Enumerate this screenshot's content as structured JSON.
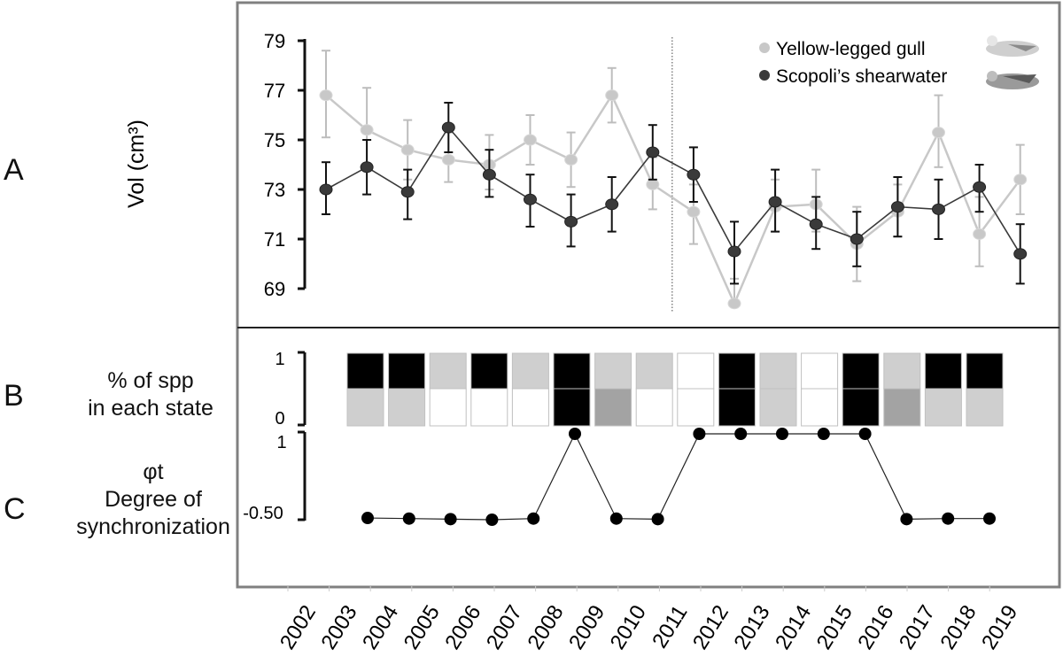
{
  "panels": {
    "a": {
      "letter": "A"
    },
    "b": {
      "letter": "B",
      "label_line1": "% of spp",
      "label_line2": "in each state"
    },
    "c": {
      "letter": "C",
      "label_line1": "φt",
      "label_line2": "Degree of",
      "label_line3": "synchronization"
    }
  },
  "colors": {
    "gull": "#c8c8c8",
    "shearwater": "#3a3a3a",
    "state_black": "#000000",
    "state_light": "#cfcfcf",
    "state_mid": "#a3a3a3",
    "state_white": "#ffffff"
  },
  "legend_icons": [
    "gull-photo-icon",
    "shearwater-photo-icon"
  ],
  "x_labels": [
    "2002",
    "2003",
    "2004",
    "2005",
    "2006",
    "2007",
    "2008",
    "2009",
    "2010",
    "2011",
    "2012",
    "2013",
    "2014",
    "2015",
    "2016",
    "2017",
    "2018",
    "2019"
  ],
  "chart_data": [
    {
      "type": "line",
      "panel": "A",
      "ylabel": "Vol (cm³)",
      "ylim": [
        68,
        80
      ],
      "yticks": [
        69,
        71,
        73,
        75,
        77,
        79
      ],
      "x": [
        "2002",
        "2003",
        "2004",
        "2005",
        "2006",
        "2007",
        "2008",
        "2009",
        "2010",
        "2011",
        "2012",
        "2013",
        "2014",
        "2015",
        "2016",
        "2017",
        "2018",
        "2019"
      ],
      "divider_after": "2010",
      "legend_position": "top-right",
      "series": [
        {
          "name": "Yellow-legged gull",
          "values": [
            76.8,
            75.4,
            74.6,
            74.2,
            74.0,
            75.0,
            74.2,
            76.8,
            73.2,
            72.1,
            68.4,
            72.3,
            72.4,
            70.8,
            72.1,
            75.3,
            71.2,
            73.4
          ],
          "err_hi": [
            78.6,
            77.1,
            75.8,
            75.3,
            75.2,
            76.0,
            75.3,
            77.9,
            74.3,
            73.2,
            69.4,
            73.4,
            73.8,
            72.3,
            73.2,
            76.8,
            72.7,
            74.8
          ],
          "err_lo": [
            75.1,
            73.8,
            73.4,
            73.3,
            73.0,
            74.0,
            73.1,
            75.7,
            72.2,
            70.8,
            68.4,
            71.3,
            71.3,
            69.3,
            71.1,
            73.9,
            69.9,
            72.0
          ]
        },
        {
          "name": "Scopoli’s shearwater",
          "values": [
            73.0,
            73.9,
            72.9,
            75.5,
            73.6,
            72.6,
            71.7,
            72.4,
            74.5,
            73.6,
            70.5,
            72.5,
            71.6,
            71.0,
            72.3,
            72.2,
            73.1,
            70.4
          ],
          "err_hi": [
            74.1,
            75.0,
            73.8,
            76.5,
            74.6,
            73.6,
            72.8,
            73.5,
            75.6,
            74.7,
            71.7,
            73.8,
            72.7,
            72.1,
            73.5,
            73.4,
            74.0,
            71.6
          ],
          "err_lo": [
            72.0,
            72.8,
            71.8,
            74.5,
            72.7,
            71.5,
            70.7,
            71.3,
            73.4,
            72.5,
            69.2,
            71.3,
            70.6,
            69.9,
            71.1,
            71.0,
            72.1,
            69.2
          ]
        }
      ]
    },
    {
      "type": "heatmap",
      "panel": "B",
      "yticks": [
        "1",
        "0"
      ],
      "cells": [
        {
          "top": "black",
          "bottom": "light"
        },
        {
          "top": "black",
          "bottom": "light"
        },
        {
          "top": "light",
          "bottom": "white"
        },
        {
          "top": "black",
          "bottom": "white"
        },
        {
          "top": "light",
          "bottom": "white"
        },
        {
          "top": "black",
          "bottom": "black"
        },
        {
          "top": "light",
          "bottom": "mid"
        },
        {
          "top": "light",
          "bottom": "white"
        },
        {
          "top": "white",
          "bottom": "white"
        },
        {
          "top": "black",
          "bottom": "black"
        },
        {
          "top": "light",
          "bottom": "light"
        },
        {
          "top": "white",
          "bottom": "white"
        },
        {
          "top": "black",
          "bottom": "black"
        },
        {
          "top": "light",
          "bottom": "mid"
        },
        {
          "top": "black",
          "bottom": "light"
        },
        {
          "top": "black",
          "bottom": "light"
        }
      ]
    },
    {
      "type": "line",
      "panel": "C",
      "ylim": [
        -0.5,
        1
      ],
      "yticks": [
        "1",
        "-0.50"
      ],
      "values": [
        -0.47,
        -0.48,
        -0.49,
        -0.5,
        -0.48,
        1,
        -0.48,
        -0.49,
        1,
        1,
        1,
        1,
        1,
        -0.49,
        -0.48,
        -0.48
      ]
    }
  ]
}
